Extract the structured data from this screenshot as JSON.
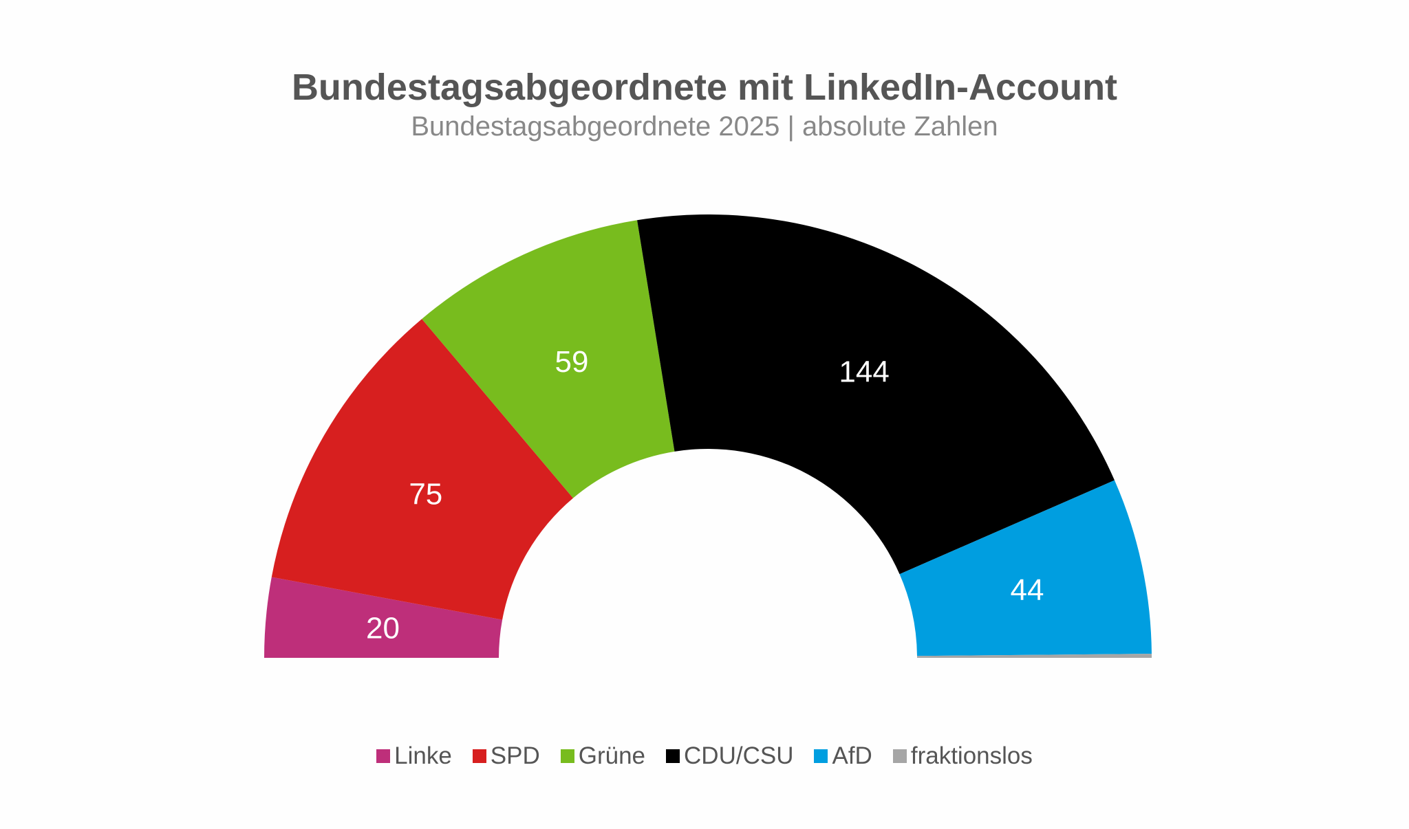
{
  "chart_data": {
    "type": "pie",
    "variant": "semicircle-donut",
    "title": "Bundestagsabgeordnete mit LinkedIn-Account",
    "subtitle": "Bundestagsabgeordnete 2025 | absolute Zahlen",
    "categories": [
      "Linke",
      "SPD",
      "Grüne",
      "CDU/CSU",
      "AfD",
      "fraktionslos"
    ],
    "values": [
      20,
      75,
      59,
      144,
      44,
      1
    ],
    "data_labels": [
      "20",
      "75",
      "59",
      "144",
      "44",
      ""
    ],
    "colors": [
      "#be2f7a",
      "#d71f1f",
      "#78bc1e",
      "#000000",
      "#009ee0",
      "#a6a6a6"
    ],
    "legend_position": "bottom"
  }
}
